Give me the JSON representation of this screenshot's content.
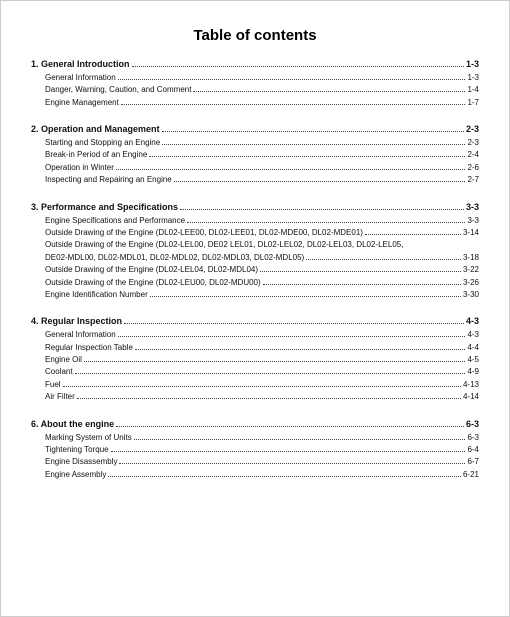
{
  "title": "Table of contents",
  "sections": [
    {
      "head": {
        "label": "1. General Introduction",
        "page": "1-3"
      },
      "items": [
        {
          "label": "General Information",
          "page": "1-3"
        },
        {
          "label": "Danger, Warning, Caution, and Comment",
          "page": "1-4"
        },
        {
          "label": "Engine Management",
          "page": "1-7"
        }
      ]
    },
    {
      "head": {
        "label": "2. Operation and Management",
        "page": "2-3"
      },
      "items": [
        {
          "label": "Starting and Stopping an Engine",
          "page": "2-3"
        },
        {
          "label": "Break-in Period of an Engine",
          "page": "2-4"
        },
        {
          "label": "Operation in Winter",
          "page": "2-6"
        },
        {
          "label": "Inspecting and Repairing an Engine",
          "page": "2-7"
        }
      ]
    },
    {
      "head": {
        "label": "3. Performance and Specifications",
        "page": "3-3"
      },
      "items": [
        {
          "label": "Engine Specifications and Performance",
          "page": "3-3"
        },
        {
          "label": "Outside Drawing of the Engine (DL02-LEE00, DL02-LEE01, DL02-MDE00, DL02-MDE01)",
          "page": "3-14"
        },
        {
          "wrap1": "Outside Drawing of the Engine (DL02-LEL00, DE02 LEL01, DL02-LEL02, DL02-LEL03, DL02-LEL05,",
          "wrap2": "DE02-MDL00, DL02-MDL01, DL02-MDL02, DL02-MDL03, DL02-MDL05)",
          "page": "3-18",
          "wrapped": true
        },
        {
          "label": "Outside Drawing of the Engine (DL02-LEL04, DL02-MDL04)",
          "page": "3-22"
        },
        {
          "label": "Outside Drawing of the Engine (DL02-LEU00, DL02-MDU00)",
          "page": "3-26"
        },
        {
          "label": "Engine Identification Number",
          "page": "3-30"
        }
      ]
    },
    {
      "head": {
        "label": "4. Regular Inspection",
        "page": "4-3"
      },
      "items": [
        {
          "label": "General Information",
          "page": "4-3"
        },
        {
          "label": "Regular Inspection Table",
          "page": "4-4"
        },
        {
          "label": "Engine Oil",
          "page": "4-5"
        },
        {
          "label": "Coolant",
          "page": "4-9"
        },
        {
          "label": "Fuel",
          "page": "4-13"
        },
        {
          "label": "Air Filter",
          "page": "4-14"
        }
      ]
    },
    {
      "head": {
        "label": "6. About the engine",
        "page": "6-3"
      },
      "items": [
        {
          "label": "Marking System of Units",
          "page": "6-3"
        },
        {
          "label": "Tightening Torque",
          "page": "6-4"
        },
        {
          "label": "Engine Disassembly",
          "page": "6-7"
        },
        {
          "label": "Engine Assembly",
          "page": "6-21"
        }
      ]
    }
  ]
}
